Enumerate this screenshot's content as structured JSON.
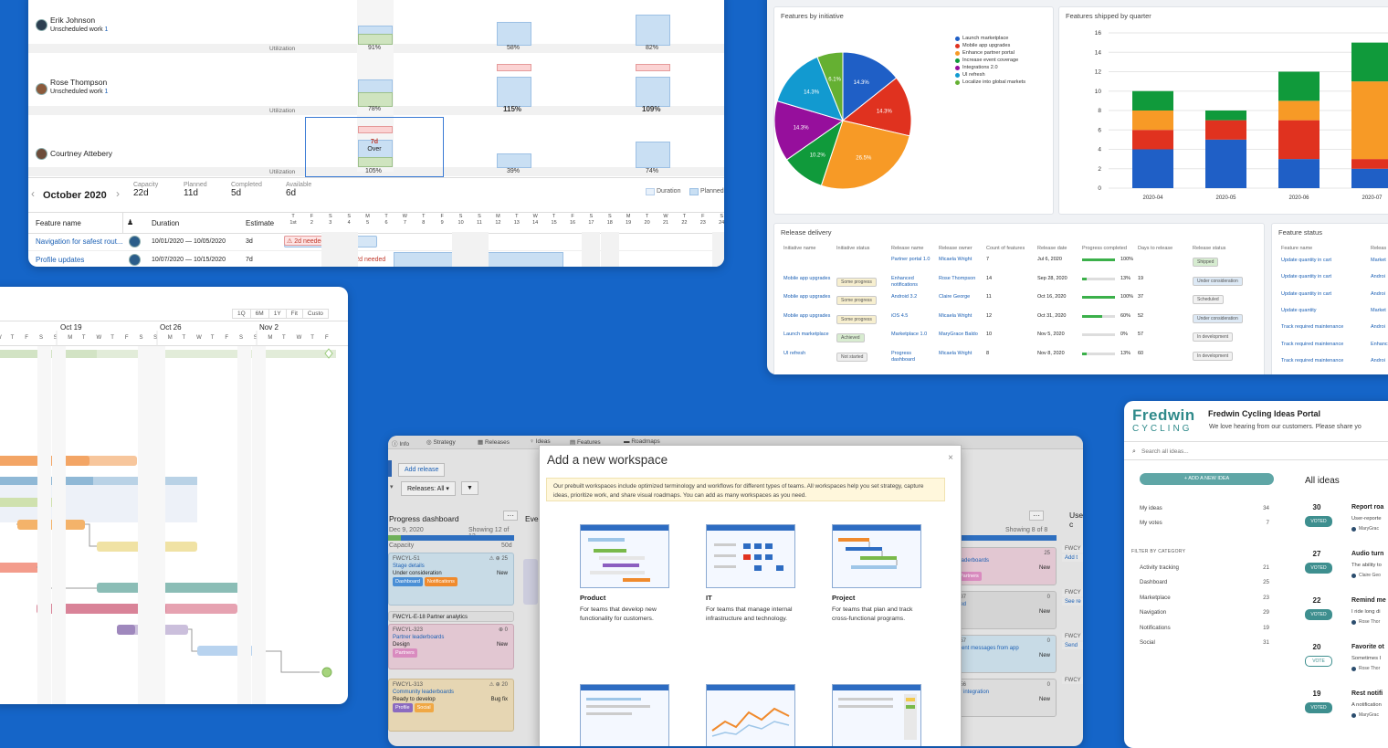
{
  "capacity_view": {
    "people": [
      {
        "name": "Erik Johnson",
        "sub_label": "Unscheduled work",
        "sub_count": "1",
        "util": [
          "91%",
          "58%",
          "82%"
        ],
        "bold": [
          false,
          false,
          false
        ]
      },
      {
        "name": "Rose Thompson",
        "sub_label": "Unscheduled work",
        "sub_count": "1",
        "util": [
          "78%",
          "115%",
          "109%"
        ],
        "bold": [
          false,
          true,
          true
        ]
      },
      {
        "name": "Courtney Attebery",
        "sub_label": "",
        "sub_count": "",
        "util": [
          "105%",
          "39%",
          "74%"
        ],
        "bold": [
          false,
          false,
          false
        ]
      }
    ],
    "utilization_label": "Utilization",
    "over_badge": {
      "days": "7d",
      "label": "Over"
    },
    "month": "October 2020",
    "stats": [
      {
        "label": "Capacity",
        "value": "22d"
      },
      {
        "label": "Planned",
        "value": "11d"
      },
      {
        "label": "Completed",
        "value": "5d"
      },
      {
        "label": "Available",
        "value": "6d"
      }
    ],
    "legend": [
      "Duration",
      "Planned"
    ],
    "table_headers": [
      "Feature name",
      "Duration",
      "Estimate"
    ],
    "day_letters": [
      "T",
      "F",
      "S",
      "S",
      "M",
      "T",
      "W",
      "T",
      "F",
      "S",
      "S",
      "M",
      "T",
      "W",
      "T",
      "F",
      "S",
      "S",
      "M",
      "T",
      "W",
      "T",
      "F",
      "S"
    ],
    "day_numbers": [
      "1st",
      "2",
      "3",
      "4",
      "5",
      "6",
      "7",
      "8",
      "9",
      "10",
      "11",
      "12",
      "13",
      "14",
      "15",
      "16",
      "17",
      "18",
      "19",
      "20",
      "21",
      "22",
      "23",
      "24"
    ],
    "rows": [
      {
        "feature": "Navigation for safest rout...",
        "start": "10/01/2020",
        "end": "10/05/2020",
        "estimate": "3d",
        "warning": "2d needed"
      },
      {
        "feature": "Profile updates",
        "start": "10/07/2020",
        "end": "10/15/2020",
        "estimate": "7d",
        "warning": "2d needed"
      }
    ]
  },
  "dashboard": {
    "pie": {
      "title": "Features by initiative",
      "legend": [
        {
          "label": "Launch marketplace",
          "color": "#1f5fc6"
        },
        {
          "label": "Mobile app upgrades",
          "color": "#e0321f"
        },
        {
          "label": "Enhance partner portal",
          "color": "#f79a26"
        },
        {
          "label": "Increase event coverage",
          "color": "#109a3b"
        },
        {
          "label": "Integrations 2.0",
          "color": "#960f9c"
        },
        {
          "label": "UI refresh",
          "color": "#129ad0"
        },
        {
          "label": "Localize into global markets",
          "color": "#65b032"
        }
      ]
    },
    "bar": {
      "title": "Features shipped by quarter"
    },
    "release_delivery": {
      "title": "Release delivery",
      "headers": [
        "Initiative name",
        "Initiative status",
        "Release name",
        "Release owner",
        "Count of features",
        "Release date",
        "Progress completed",
        "Days to release",
        "Release status"
      ],
      "rows": [
        {
          "initiative": "",
          "status": "",
          "release": "Partner portal 1.0",
          "owner": "Micaela Wright",
          "count": "7",
          "date": "Jul 6, 2020",
          "progress": "100%",
          "progress_frac": 1.0,
          "days": "",
          "rstatus": "Shipped",
          "rcolor": "green"
        },
        {
          "initiative": "Mobile app upgrades",
          "status": "Some progress",
          "release": "Enhanced notifications",
          "owner": "Rose Thompson",
          "count": "14",
          "date": "Sep 28, 2020",
          "progress": "13%",
          "progress_frac": 0.13,
          "days": "19",
          "rstatus": "Under consideration",
          "rcolor": "blue"
        },
        {
          "initiative": "Mobile app upgrades",
          "status": "Some progress",
          "release": "Android 3.2",
          "owner": "Claire George",
          "count": "11",
          "date": "Oct 16, 2020",
          "progress": "100%",
          "progress_frac": 1.0,
          "days": "37",
          "rstatus": "Scheduled",
          "rcolor": "gray"
        },
        {
          "initiative": "Mobile app upgrades",
          "status": "Some progress",
          "release": "iOS 4.5",
          "owner": "Micaela Wright",
          "count": "12",
          "date": "Oct 31, 2020",
          "progress": "60%",
          "progress_frac": 0.6,
          "days": "52",
          "rstatus": "Under consideration",
          "rcolor": "blue"
        },
        {
          "initiative": "Launch marketplace",
          "status": "Achieved",
          "release": "Marketplace 1.0",
          "owner": "MaryGrace Baldo",
          "count": "10",
          "date": "Nov 5, 2020",
          "progress": "0%",
          "progress_frac": 0.0,
          "days": "57",
          "rstatus": "In development",
          "rcolor": "gray"
        },
        {
          "initiative": "UI refresh",
          "status": "Not started",
          "release": "Progress dashboard",
          "owner": "Micaela Wright",
          "count": "8",
          "date": "Nov 8, 2020",
          "progress": "13%",
          "progress_frac": 0.13,
          "days": "60",
          "rstatus": "In development",
          "rcolor": "gray"
        }
      ]
    },
    "feature_status": {
      "title": "Feature status",
      "headers": [
        "Feature name",
        "Releas"
      ],
      "rows": [
        {
          "name": "Update quantity in cart",
          "rel": "Market"
        },
        {
          "name": "Update quantity in cart",
          "rel": "Androi"
        },
        {
          "name": "Update quantity in cart",
          "rel": "Androi"
        },
        {
          "name": "Update quantity",
          "rel": "Market"
        },
        {
          "name": "Track required maintenance",
          "rel": "Androi"
        },
        {
          "name": "Track required maintenance",
          "rel": "Enhanc"
        },
        {
          "name": "Track required maintenance",
          "rel": "Androi"
        }
      ]
    }
  },
  "chart_data": [
    {
      "type": "pie",
      "title": "Features by initiative",
      "slices": [
        {
          "label": "Launch marketplace",
          "value": 14.3,
          "color": "#1f5fc6"
        },
        {
          "label": "Mobile app upgrades",
          "value": 14.3,
          "color": "#e0321f"
        },
        {
          "label": "Enhance partner portal",
          "value": 26.5,
          "color": "#f79a26"
        },
        {
          "label": "Increase event coverage",
          "value": 10.2,
          "color": "#109a3b"
        },
        {
          "label": "Integrations 2.0",
          "value": 14.3,
          "color": "#960f9c"
        },
        {
          "label": "UI refresh",
          "value": 14.3,
          "color": "#129ad0"
        },
        {
          "label": "Localize into global markets",
          "value": 6.1,
          "color": "#65b032"
        }
      ],
      "value_labels": [
        "14.3%",
        "14.3%",
        "26.5%",
        "10.2%",
        "14.3%",
        "14.3%",
        "6.1%"
      ]
    },
    {
      "type": "bar",
      "stacked": true,
      "title": "Features shipped by quarter",
      "categories": [
        "2020-04",
        "2020-05",
        "2020-06",
        "2020-07"
      ],
      "ylim": [
        0,
        16
      ],
      "yticks": [
        0,
        2,
        4,
        6,
        8,
        10,
        12,
        14,
        16
      ],
      "series": [
        {
          "color": "#1f5fc6",
          "values": [
            4,
            5,
            3,
            2
          ]
        },
        {
          "color": "#e0321f",
          "values": [
            2,
            2,
            4,
            1
          ]
        },
        {
          "color": "#f79a26",
          "values": [
            2,
            0,
            2,
            8
          ]
        },
        {
          "color": "#109a3b",
          "values": [
            2,
            1,
            3,
            4
          ]
        }
      ],
      "extra_bar_partial": true
    }
  ],
  "gantt": {
    "range_buttons": [
      "1Q",
      "6M",
      "1Y",
      "Fit",
      "Custo"
    ],
    "weeks": [
      "Oct 19",
      "Oct 26",
      "Nov 2"
    ],
    "day_letters": [
      "W",
      "T",
      "F",
      "S",
      "S",
      "M",
      "T",
      "W",
      "T",
      "F",
      "S",
      "S",
      "M",
      "T",
      "W",
      "T",
      "F",
      "S",
      "S",
      "M",
      "T",
      "W",
      "T",
      "F"
    ]
  },
  "workspace": {
    "tabs": [
      "Info",
      "Strategy",
      "Releases",
      "Ideas",
      "Features",
      "Roadmaps"
    ],
    "add_release": "Add release",
    "filter": "Releases: All",
    "columns": [
      {
        "title": "Progress dashboard",
        "date": "Dec 9, 2020",
        "showing": "Showing 12 of 12",
        "capacity": "Capacity",
        "cap_value": "50d"
      },
      {
        "title": "Eve",
        "date": "",
        "showing": "",
        "capacity": "",
        "cap_value": ""
      },
      {
        "title": "User s don't c",
        "date": "",
        "showing": "Showing 8 of 8",
        "capacity": "",
        "cap_value": ""
      }
    ],
    "cards": [
      {
        "id": "FWCYL-51",
        "title": "Stage details",
        "status": "Under consideration",
        "type": "New",
        "tags": [
          "Dashboard",
          "Notifications"
        ],
        "score": "25"
      },
      {
        "id": "FWCYL-E-18",
        "title": "Partner analytics",
        "status": "",
        "type": "",
        "tags": [],
        "score": ""
      },
      {
        "id": "FWCYL-323",
        "title": "Partner leaderboards",
        "status": "Design",
        "type": "New",
        "tags": [
          "Partners"
        ],
        "score": "0"
      },
      {
        "id": "FWCYL-313",
        "title": "Community leaderboards",
        "status": "Ready to develop",
        "type": "Bug fix",
        "tags": [
          "Profile",
          "Social"
        ],
        "score": "20"
      }
    ],
    "right_cards": [
      {
        "id": "",
        "title": "leaderboards",
        "type": "New",
        "tags": [
          "Partners"
        ],
        "score": "25"
      },
      {
        "id": "397",
        "title": "eed",
        "type": "New",
        "tags": [],
        "score": "0"
      },
      {
        "id": "357",
        "title": "ment messages from app",
        "type": "New",
        "tags": [],
        "score": "0"
      },
      {
        "id": "356",
        "title": "er integration",
        "type": "New",
        "tags": [],
        "score": "0"
      }
    ],
    "far_right": [
      "FWCY",
      "Add t",
      "FWCY",
      "See re",
      "FWCY",
      "Send",
      "FWCY"
    ],
    "modal": {
      "title": "Add a new workspace",
      "close": "×",
      "intro": "Our prebuilt workspaces include optimized terminology and workflows for different types of teams. All workspaces help you set strategy, capture ideas, prioritize work, and share visual roadmaps. You can add as many workspaces as you need.",
      "options": [
        {
          "name": "Product",
          "desc": "For teams that develop new functionality for customers."
        },
        {
          "name": "IT",
          "desc": "For teams that manage internal infrastructure and technology."
        },
        {
          "name": "Project",
          "desc": "For teams that plan and track cross-functional programs."
        }
      ]
    }
  },
  "portal": {
    "brand": "Fredwin",
    "brand_sub": "CYCLING",
    "title": "Fredwin Cycling Ideas Portal",
    "tagline": "We love hearing from our customers. Please share yo",
    "search_placeholder": "Search all ideas...",
    "add_idea": "+ ADD A NEW IDEA",
    "my_ideas": {
      "label": "My ideas",
      "count": "34"
    },
    "my_votes": {
      "label": "My votes",
      "count": "7"
    },
    "filter_heading": "FILTER BY CATEGORY",
    "categories": [
      {
        "label": "Activity tracking",
        "count": "21"
      },
      {
        "label": "Dashboard",
        "count": "25"
      },
      {
        "label": "Marketplace",
        "count": "23"
      },
      {
        "label": "Navigation",
        "count": "29"
      },
      {
        "label": "Notifications",
        "count": "19"
      },
      {
        "label": "Social",
        "count": "31"
      }
    ],
    "all_ideas": "All ideas",
    "ideas": [
      {
        "count": "30",
        "vote": "VOTED",
        "title": "Report roa",
        "desc": "User-reporte",
        "author": "MaryGrac"
      },
      {
        "count": "27",
        "vote": "VOTED",
        "title": "Audio turn",
        "desc": "The ability to",
        "author": "Claire Geo"
      },
      {
        "count": "22",
        "vote": "VOTED",
        "title": "Remind me",
        "desc": "I ride long di",
        "author": "Rose Thor"
      },
      {
        "count": "20",
        "vote": "VOTE",
        "title": "Favorite ot",
        "desc": "Sometimes I",
        "author": "Rose Thor"
      },
      {
        "count": "19",
        "vote": "VOTED",
        "title": "Rest notifi",
        "desc": "A notification",
        "author": "MaryGrac"
      }
    ]
  }
}
